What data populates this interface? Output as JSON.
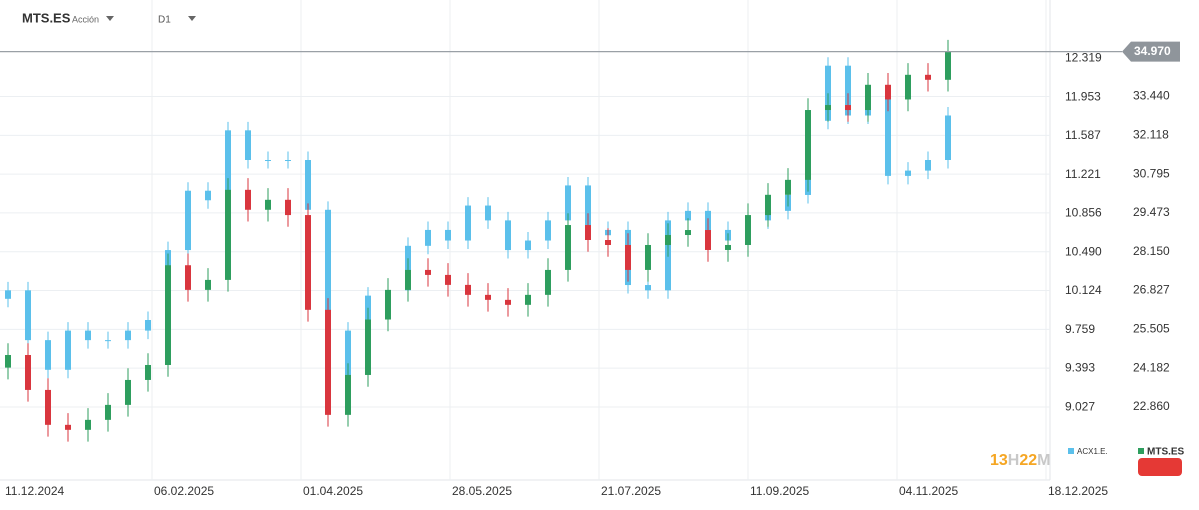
{
  "chart_data": {
    "type": "candlestick",
    "title": "MTS.ES",
    "subtitle": "Acción",
    "timeframe": "D1",
    "grid": true,
    "ylim": [
      20.37,
      36.73
    ],
    "yticks": [
      {
        "value": 22.86,
        "label": "22.860"
      },
      24.182,
      25.505,
      26.827,
      {
        "value": 28.15,
        "label": "28.150"
      },
      29.473,
      30.795,
      32.118,
      {
        "value": 33.44,
        "label": "33.440"
      }
    ],
    "y2lim": [
      8.34,
      12.87
    ],
    "y2ticks": [
      9.027,
      9.393,
      9.759,
      10.124,
      {
        "value": 10.49,
        "label": "10.490"
      },
      10.856,
      11.221,
      11.587,
      11.953,
      12.319
    ],
    "xtick_labels": [
      "11.12.2024",
      "06.02.2025",
      "01.04.2025",
      "28.05.2025",
      "21.07.2025",
      "11.09.2025",
      "04.11.2025",
      "18.12.2025"
    ],
    "last_price": {
      "value": 34.97,
      "label": "34.970"
    },
    "timer": [
      "13",
      "H",
      "22",
      "M"
    ],
    "series": [
      {
        "name": "ACX1.E.",
        "color": "#5bc0eb",
        "axis": "y2",
        "open": [
          10.05,
          10.13,
          9.66,
          9.38,
          9.75,
          9.66,
          9.66,
          9.75,
          9.85,
          10.51,
          11.07,
          10.98,
          11.64,
          11.36,
          11.36,
          11.36,
          10.89,
          9.0,
          9.75,
          10.08,
          10.13,
          10.55,
          10.7,
          10.6,
          10.93,
          10.79,
          10.51,
          10.6,
          10.79,
          11.12,
          10.65,
          10.7,
          10.18,
          10.13,
          10.79,
          10.88,
          10.6,
          10.7,
          10.79,
          10.88,
          11.03,
          11.73,
          12.25,
          11.78,
          12.06,
          11.21,
          11.26,
          11.36
        ],
        "high": [
          10.21,
          10.21,
          9.74,
          9.83,
          9.83,
          9.74,
          9.83,
          9.93,
          10.59,
          11.15,
          11.15,
          11.72,
          11.72,
          11.44,
          11.44,
          11.44,
          10.97,
          9.83,
          10.16,
          10.21,
          10.63,
          10.78,
          10.78,
          11.01,
          11.01,
          10.87,
          10.68,
          10.87,
          11.2,
          11.2,
          10.78,
          10.78,
          10.26,
          10.87,
          10.96,
          10.96,
          10.78,
          10.87,
          10.96,
          11.11,
          11.81,
          12.33,
          12.33,
          12.14,
          12.14,
          11.34,
          11.44,
          11.86
        ],
        "low": [
          9.97,
          9.58,
          9.3,
          9.3,
          9.58,
          9.58,
          9.58,
          9.67,
          9.77,
          10.43,
          10.9,
          10.9,
          11.28,
          11.28,
          11.28,
          10.81,
          8.92,
          8.92,
          9.67,
          10.0,
          10.05,
          10.47,
          10.52,
          10.52,
          10.71,
          10.43,
          10.43,
          10.52,
          10.71,
          10.57,
          10.57,
          10.1,
          10.05,
          10.05,
          10.71,
          10.52,
          10.52,
          10.62,
          10.71,
          10.8,
          10.95,
          11.65,
          11.7,
          11.7,
          11.13,
          11.13,
          11.18,
          11.28
        ],
        "close": [
          10.13,
          9.66,
          9.38,
          9.75,
          9.66,
          9.66,
          9.75,
          9.85,
          10.51,
          11.07,
          10.98,
          11.64,
          11.36,
          11.36,
          11.36,
          10.89,
          9.0,
          9.75,
          10.08,
          10.13,
          10.55,
          10.7,
          10.6,
          10.93,
          10.79,
          10.51,
          10.6,
          10.79,
          11.12,
          10.65,
          10.7,
          10.18,
          10.13,
          10.79,
          10.88,
          10.6,
          10.7,
          10.79,
          10.88,
          11.03,
          11.73,
          12.25,
          11.78,
          12.06,
          11.21,
          11.26,
          11.36,
          11.78
        ]
      },
      {
        "name": "MTS.ES",
        "color": "#2e9e5e",
        "down_color": "#d9363e",
        "open": [
          24.2,
          24.63,
          23.44,
          22.25,
          22.08,
          22.42,
          22.93,
          23.78,
          24.29,
          27.69,
          26.85,
          27.19,
          30.26,
          29.58,
          29.92,
          29.4,
          26.17,
          22.59,
          23.95,
          25.84,
          26.85,
          27.53,
          27.36,
          27.02,
          26.68,
          26.51,
          26.34,
          26.68,
          27.53,
          29.06,
          28.55,
          28.38,
          27.53,
          28.38,
          28.72,
          28.89,
          28.21,
          28.38,
          29.4,
          30.09,
          30.6,
          32.98,
          33.15,
          32.98,
          33.84,
          33.34,
          34.18,
          34.01
        ],
        "high": [
          25.03,
          25.03,
          23.84,
          22.65,
          22.82,
          23.33,
          24.18,
          24.69,
          28.09,
          28.09,
          27.59,
          30.66,
          30.66,
          30.32,
          30.32,
          29.8,
          26.57,
          24.35,
          26.24,
          27.25,
          27.93,
          27.93,
          27.76,
          27.42,
          27.08,
          26.91,
          27.08,
          27.93,
          29.46,
          29.46,
          28.95,
          28.78,
          28.78,
          29.12,
          29.29,
          29.29,
          28.78,
          29.8,
          30.49,
          31.0,
          33.38,
          33.55,
          33.55,
          34.24,
          34.24,
          34.58,
          34.58,
          35.37
        ],
        "low": [
          23.8,
          23.04,
          21.85,
          21.68,
          21.68,
          22.02,
          22.53,
          23.38,
          23.89,
          26.45,
          26.45,
          26.79,
          29.18,
          29.18,
          29.0,
          25.77,
          22.19,
          22.19,
          23.55,
          25.44,
          26.45,
          26.96,
          26.62,
          26.28,
          26.11,
          25.94,
          25.94,
          26.28,
          27.13,
          28.15,
          27.98,
          27.13,
          27.13,
          27.98,
          28.32,
          27.81,
          27.81,
          27.98,
          29.0,
          29.69,
          30.2,
          32.58,
          32.58,
          32.58,
          32.94,
          32.94,
          33.61,
          33.61
        ],
        "close": [
          24.63,
          23.44,
          22.25,
          22.08,
          22.42,
          22.93,
          23.78,
          24.29,
          27.69,
          26.85,
          27.19,
          30.26,
          29.58,
          29.92,
          29.4,
          26.17,
          22.59,
          23.95,
          25.84,
          26.85,
          27.53,
          27.36,
          27.02,
          26.68,
          26.51,
          26.34,
          26.68,
          27.53,
          29.06,
          28.55,
          28.38,
          27.53,
          28.38,
          28.72,
          28.89,
          28.21,
          28.38,
          29.4,
          30.09,
          30.6,
          32.98,
          33.15,
          32.98,
          33.84,
          33.34,
          34.18,
          34.01,
          34.97
        ]
      }
    ]
  }
}
